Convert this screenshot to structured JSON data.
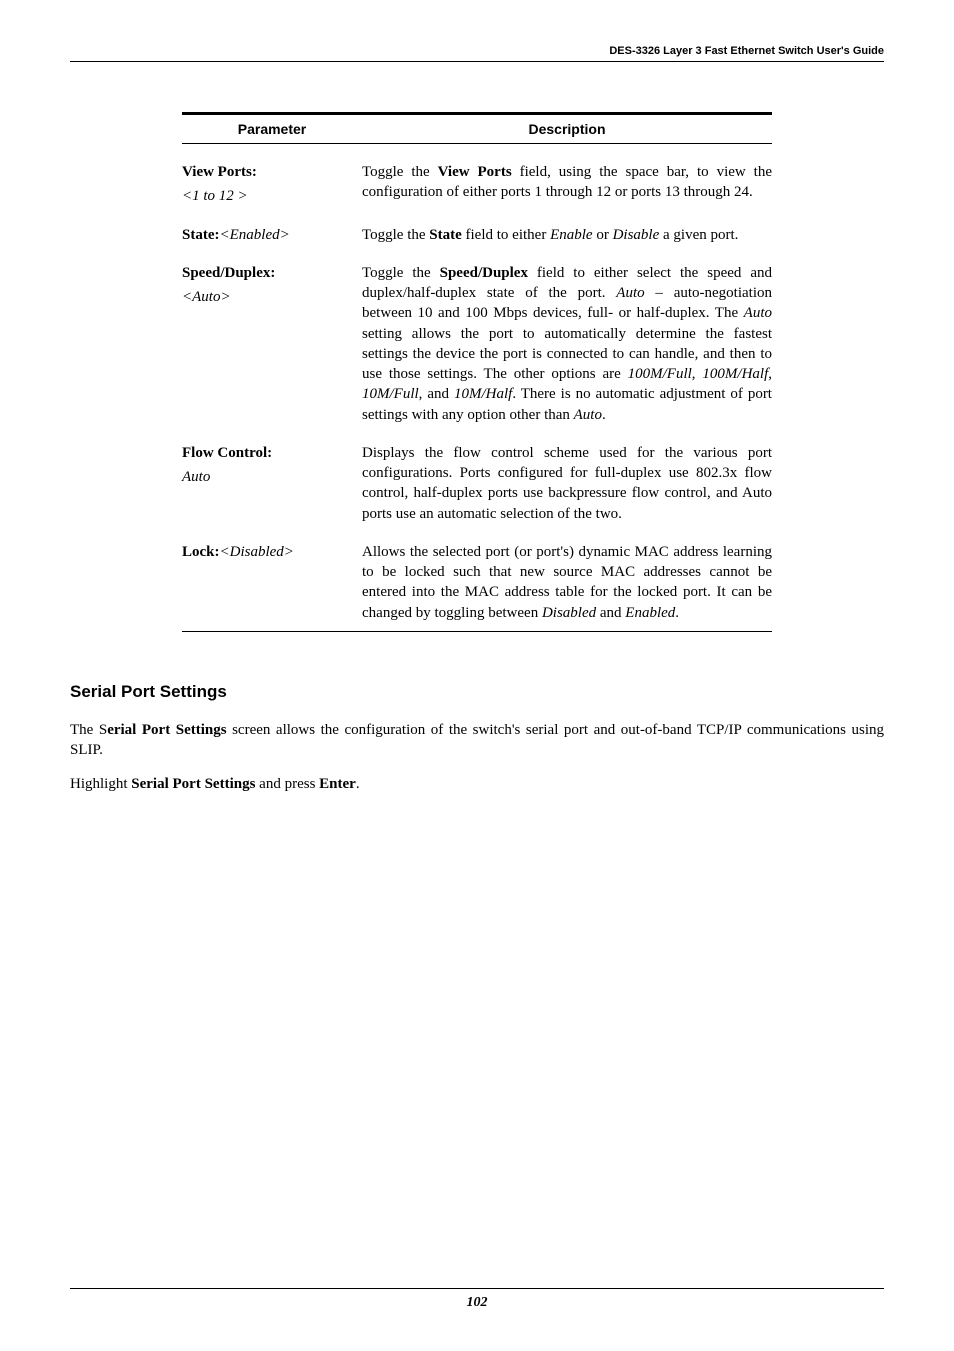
{
  "header": "DES-3326 Layer 3 Fast Ethernet Switch User's Guide",
  "table": {
    "col_param_label": "Parameter",
    "col_desc_label": "Description",
    "rows": [
      {
        "label": "View Ports:",
        "sublabel": "<1 to 12  >",
        "desc_html": "Toggle the <b>View Ports</b> field, using the space bar, to view the configuration of either ports 1 through 12 or ports 13 through 24."
      },
      {
        "label": "State:",
        "label_suffix_italic": "<Enabled>",
        "desc_html": "Toggle the <b>State</b> field to either <i>Enable</i> or <i>Disable</i> a given port."
      },
      {
        "label": "Speed/Duplex:",
        "sublabel": "<Auto>",
        "desc_html": "Toggle the <b>Speed/Duplex</b> field to either select the speed and duplex/half-duplex state of the port. <i>Auto</i> – auto-negotiation between 10 and 100 Mbps devices, full- or half-duplex. The <i>Auto</i> setting allows the port to automatically determine the fastest settings the device the port is connected to can handle, and then to use those settings. The other options are <i>100M/Full</i>, <i>100M/Half</i>, <i>10M/Full</i>, and <i>10M/Half</i>. There is no automatic adjustment of port settings with any option other than <i>Auto</i>."
      },
      {
        "label": "Flow Control:",
        "sublabel_plain": "Auto",
        "desc_html": "Displays the flow control scheme used for the various port configurations.  Ports configured for full-duplex use 802.3x flow control, half-duplex ports use backpressure flow control, and Auto ports use an automatic selection of the two."
      },
      {
        "label": "Lock:",
        "label_suffix_italic": "<Disabled>",
        "desc_html": "Allows the selected port (or port's) dynamic MAC address learning to be locked such that new source MAC addresses cannot be entered into the MAC address table for the locked port.  It can be changed by toggling between <i>Disabled</i> and <i>Enabled</i>."
      }
    ]
  },
  "section_heading": "Serial Port Settings",
  "body1_html": "The S<b>erial Port Settings</b> screen allows the configuration of the switch's serial port and out-of-band TCP/IP communications using SLIP.",
  "body2_html": "Highlight <b>Serial Port Settings</b> and press <b>Enter</b>.",
  "footer": "102"
}
